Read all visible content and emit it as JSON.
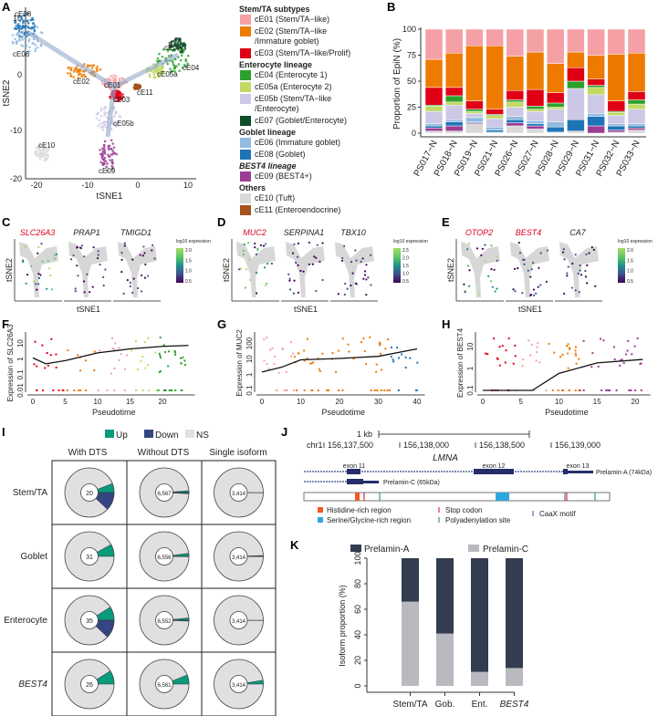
{
  "panels": {
    "A": "A",
    "B": "B",
    "C": "C",
    "D": "D",
    "E": "E",
    "F": "F",
    "G": "G",
    "H": "H",
    "I": "I",
    "J": "J",
    "K": "K"
  },
  "colors": {
    "cE01": "#f4a0a4",
    "cE02": "#ee7a00",
    "cE03": "#e00016",
    "cE04": "#2ca02c",
    "cE05a": "#c2d964",
    "cE05b": "#cdc8e6",
    "cE07": "#0e4d27",
    "cE06": "#91bbe0",
    "cE08": "#1f74b6",
    "cE09": "#9b3d95",
    "cE10": "#d9d9d9",
    "cE11": "#a6521d",
    "up": "#0a9a7c",
    "down": "#34467f",
    "ns": "#e1dfe1",
    "prelaminA": "#333d50",
    "prelaminC": "#b8bac0"
  },
  "panelA": {
    "xlabel": "tSNE1",
    "ylabel": "tSNE2",
    "xticks": [
      "-20",
      "-10",
      "0",
      "10"
    ],
    "yticks": [
      "10",
      "0",
      "-10",
      "-20"
    ],
    "cluster_labels": [
      "cE08",
      "cE06",
      "cE02",
      "cE01",
      "cE03",
      "cE05b",
      "cE07",
      "cE04",
      "cE05a",
      "cE11",
      "cE10",
      "cE09"
    ]
  },
  "legend": {
    "groups": [
      {
        "title": "Stem/TA subtypes",
        "italic_title": false,
        "items": [
          {
            "id": "cE01",
            "lines": [
              "cE01 (Stem/TA−like)"
            ]
          },
          {
            "id": "cE02",
            "lines": [
              "cE02 (Stem/TA−like",
              "/Immature goblet)"
            ]
          },
          {
            "id": "cE03",
            "lines": [
              "cE03 (Stem/TA−like/Prolif)"
            ]
          }
        ]
      },
      {
        "title": "Enterocyte lineage",
        "items": [
          {
            "id": "cE04",
            "lines": [
              "cE04 (Enterocyte 1)"
            ]
          },
          {
            "id": "cE05a",
            "lines": [
              "cE05a (Enterocyte 2)"
            ]
          },
          {
            "id": "cE05b",
            "lines": [
              "cE05b (Stem/TA−like",
              "/Enterocyte)"
            ]
          },
          {
            "id": "cE07",
            "lines": [
              "cE07 (Goblet/Enterocyte)"
            ]
          }
        ]
      },
      {
        "title": "Goblet lineage",
        "items": [
          {
            "id": "cE06",
            "lines": [
              "cE06 (Immature goblet)"
            ]
          },
          {
            "id": "cE08",
            "lines": [
              "cE08 (Goblet)"
            ]
          }
        ]
      },
      {
        "title": "BEST4 lineage",
        "items": [
          {
            "id": "cE09",
            "lines": [
              "cE09 (BEST4+)"
            ]
          }
        ]
      },
      {
        "title": "Others",
        "items": [
          {
            "id": "cE10",
            "lines": [
              "cE10 (Tuft)"
            ]
          },
          {
            "id": "cE11",
            "lines": [
              "cE11 (Enteroendocrine)"
            ]
          }
        ]
      }
    ]
  },
  "featurePlots": {
    "C": {
      "genes": [
        "SLC26A3",
        "PRAP1",
        "TMIGD1"
      ],
      "highlight": [
        true,
        false,
        false
      ],
      "cbar": [
        "2.0",
        "1.5",
        "1.0",
        "0.5"
      ]
    },
    "D": {
      "genes": [
        "MUC2",
        "SERPINA1",
        "TBX10"
      ],
      "highlight": [
        true,
        false,
        false
      ],
      "cbar": [
        "2.5",
        "2.0",
        "1.5",
        "1.0",
        "0.5"
      ]
    },
    "E": {
      "genes": [
        "OTOP2",
        "BEST4",
        "CA7"
      ],
      "highlight": [
        true,
        true,
        false
      ],
      "cbar": [
        "2.0",
        "1.5",
        "1.0",
        "0.5"
      ]
    },
    "cbar_title": "log10 expression",
    "xlabel": "tSNE1",
    "ylabel": "tSNE2"
  },
  "gridI": {
    "legend": [
      "Up",
      "Down",
      "NS"
    ],
    "columns": [
      "With DTS",
      "Without DTS",
      "Single isoform"
    ],
    "rows": [
      "Stem/TA",
      "Goblet",
      "Enterocyte",
      "BEST4"
    ]
  },
  "panelJ": {
    "scale_label": "1 kb",
    "chrom": "chr1",
    "coords": [
      "156,137,500",
      "156,138,000",
      "156,138,500",
      "156,139,000"
    ],
    "gene": "LMNA",
    "exons": [
      "exon 11",
      "exon 12",
      "exon 13"
    ],
    "isoforms": [
      "Prelamin-A (74kDa)",
      "Prelamin-C (65kDa)"
    ],
    "features": [
      "Histidine-rich region",
      "Serine/Glycine-rich region",
      "Stop codon",
      "Polyadenylation site",
      "CaaX motif"
    ]
  },
  "chart_data": [
    {
      "id": "B",
      "type": "bar",
      "stacked": true,
      "ylabel": "Proportion of EpiN (%)",
      "ylim": [
        0,
        100
      ],
      "yticks": [
        "0",
        "25",
        "50",
        "75",
        "100"
      ],
      "categories": [
        "PS017−N",
        "PS018−N",
        "PS019−N",
        "PS021−N",
        "PS026−N",
        "PS027−N",
        "PS028−N",
        "PS029−N",
        "PS031−N",
        "PS032−N",
        "PS033−N"
      ],
      "series": [
        {
          "name": "cE10",
          "values": [
            2,
            2,
            9,
            1,
            7,
            4,
            1,
            2,
            0,
            1,
            3
          ]
        },
        {
          "name": "cE09",
          "values": [
            3,
            5,
            1,
            0,
            3,
            3,
            0,
            0,
            7,
            2,
            2
          ]
        },
        {
          "name": "cE08",
          "values": [
            2,
            4,
            1,
            2,
            3,
            2,
            5,
            11,
            9,
            4,
            2
          ]
        },
        {
          "name": "cE06",
          "values": [
            2,
            2,
            4,
            3,
            3,
            3,
            5,
            0,
            3,
            2,
            2
          ]
        },
        {
          "name": "cE05b",
          "values": [
            12,
            14,
            4,
            8,
            9,
            9,
            12,
            30,
            18,
            8,
            14
          ]
        },
        {
          "name": "cE05a",
          "values": [
            5,
            3,
            2,
            3,
            5,
            2,
            2,
            0,
            7,
            3,
            5
          ]
        },
        {
          "name": "cE04",
          "values": [
            1,
            6,
            2,
            1,
            2,
            3,
            4,
            7,
            2,
            1,
            4
          ]
        },
        {
          "name": "cE03",
          "values": [
            17,
            8,
            8,
            5,
            9,
            16,
            10,
            13,
            6,
            10,
            8
          ]
        },
        {
          "name": "cE02",
          "values": [
            27,
            33,
            53,
            61,
            33,
            36,
            28,
            15,
            23,
            45,
            37
          ]
        },
        {
          "name": "cE01",
          "values": [
            29,
            23,
            16,
            16,
            26,
            22,
            33,
            22,
            25,
            24,
            23
          ]
        }
      ]
    },
    {
      "id": "F",
      "type": "scatter",
      "xlabel": "Pseudotime",
      "ylabel": "Expression of SLC26A3",
      "xticks": [
        "0",
        "5",
        "10",
        "15",
        "20"
      ],
      "yticks": [
        "0.01",
        "0.1",
        "1",
        "10"
      ],
      "xlim": [
        -1,
        25
      ],
      "trend": {
        "x": [
          0,
          2,
          5,
          10,
          15,
          20,
          24
        ],
        "y": [
          1.2,
          0.5,
          0.8,
          2.5,
          4.5,
          6.5,
          7.5
        ]
      }
    },
    {
      "id": "G",
      "type": "scatter",
      "xlabel": "Pseudotime",
      "ylabel": "Expression of MUC2",
      "xticks": [
        "0",
        "10",
        "20",
        "30",
        "40"
      ],
      "yticks": [
        "0.1",
        "1",
        "10",
        "100"
      ],
      "xlim": [
        -2,
        42
      ],
      "trend": {
        "x": [
          0,
          5,
          10,
          20,
          30,
          40
        ],
        "y": [
          1.5,
          3,
          9,
          11,
          15,
          45
        ]
      }
    },
    {
      "id": "H",
      "type": "scatter",
      "xlabel": "Pseudotime",
      "ylabel": "Expression of BEST4",
      "xticks": [
        "0",
        "5",
        "10",
        "15",
        "20"
      ],
      "yticks": [
        "0.1",
        "1",
        "10"
      ],
      "xlim": [
        -1,
        22
      ],
      "trend": {
        "x": [
          0,
          6.5,
          10,
          15,
          21
        ],
        "y": [
          0.1,
          0.1,
          0.6,
          1.8,
          2.6
        ]
      }
    },
    {
      "id": "I",
      "type": "pie",
      "cells": [
        {
          "row": "Stem/TA",
          "col": "With DTS",
          "n": "20",
          "up": 0.06,
          "down": 0.12
        },
        {
          "row": "Stem/TA",
          "col": "Without DTS",
          "n": "6,567",
          "up": 0.012,
          "down": 0.008
        },
        {
          "row": "Stem/TA",
          "col": "Single isoform",
          "n": "3,414",
          "up": 0.0,
          "down": 0.002
        },
        {
          "row": "Goblet",
          "col": "With DTS",
          "n": "31",
          "up": 0.08,
          "down": 0.0
        },
        {
          "row": "Goblet",
          "col": "Without DTS",
          "n": "6,556",
          "up": 0.02,
          "down": 0.002
        },
        {
          "row": "Goblet",
          "col": "Single isoform",
          "n": "3,414",
          "up": 0.006,
          "down": 0.002
        },
        {
          "row": "Enterocyte",
          "col": "With DTS",
          "n": "35",
          "up": 0.09,
          "down": 0.12
        },
        {
          "row": "Enterocyte",
          "col": "Without DTS",
          "n": "6,552",
          "up": 0.015,
          "down": 0.006
        },
        {
          "row": "Enterocyte",
          "col": "Single isoform",
          "n": "3,414",
          "up": 0.0,
          "down": 0.002
        },
        {
          "row": "BEST4",
          "col": "With DTS",
          "n": "26",
          "up": 0.09,
          "down": 0.0
        },
        {
          "row": "BEST4",
          "col": "Without DTS",
          "n": "6,561",
          "up": 0.06,
          "down": 0.0
        },
        {
          "row": "BEST4",
          "col": "Single isoform",
          "n": "3,414",
          "up": 0.025,
          "down": 0.0
        }
      ]
    },
    {
      "id": "K",
      "type": "bar",
      "stacked": true,
      "ylabel": "Isoform proportion (%)",
      "ylim": [
        0,
        100
      ],
      "yticks": [
        "0",
        "20",
        "40",
        "60",
        "80",
        "100"
      ],
      "categories": [
        "Stem/TA",
        "Gob.",
        "Ent.",
        "BEST4"
      ],
      "series": [
        {
          "name": "Prelamin-C",
          "values": [
            66,
            41,
            11,
            14
          ]
        },
        {
          "name": "Prelamin-A",
          "values": [
            34,
            59,
            89,
            86
          ]
        }
      ]
    }
  ]
}
